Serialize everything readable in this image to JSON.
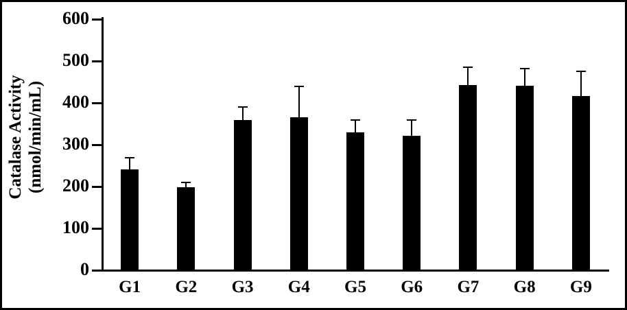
{
  "chart_data": {
    "type": "bar",
    "title": "",
    "ylabel_line1": "Catalase Activity",
    "ylabel_line2": "(nmol/min/mL)",
    "xlabel": "",
    "categories": [
      "G1",
      "G2",
      "G3",
      "G4",
      "G5",
      "G6",
      "G7",
      "G8",
      "G9"
    ],
    "values": [
      240,
      196,
      357,
      364,
      328,
      320,
      441,
      439,
      415
    ],
    "errors_up": [
      27,
      12,
      32,
      73,
      30,
      38,
      43,
      41,
      58
    ],
    "bar_color": "#000000",
    "ylim": [
      0,
      600
    ],
    "yticks": [
      0,
      100,
      200,
      300,
      400,
      500,
      600
    ],
    "grid": false,
    "legend": null
  }
}
